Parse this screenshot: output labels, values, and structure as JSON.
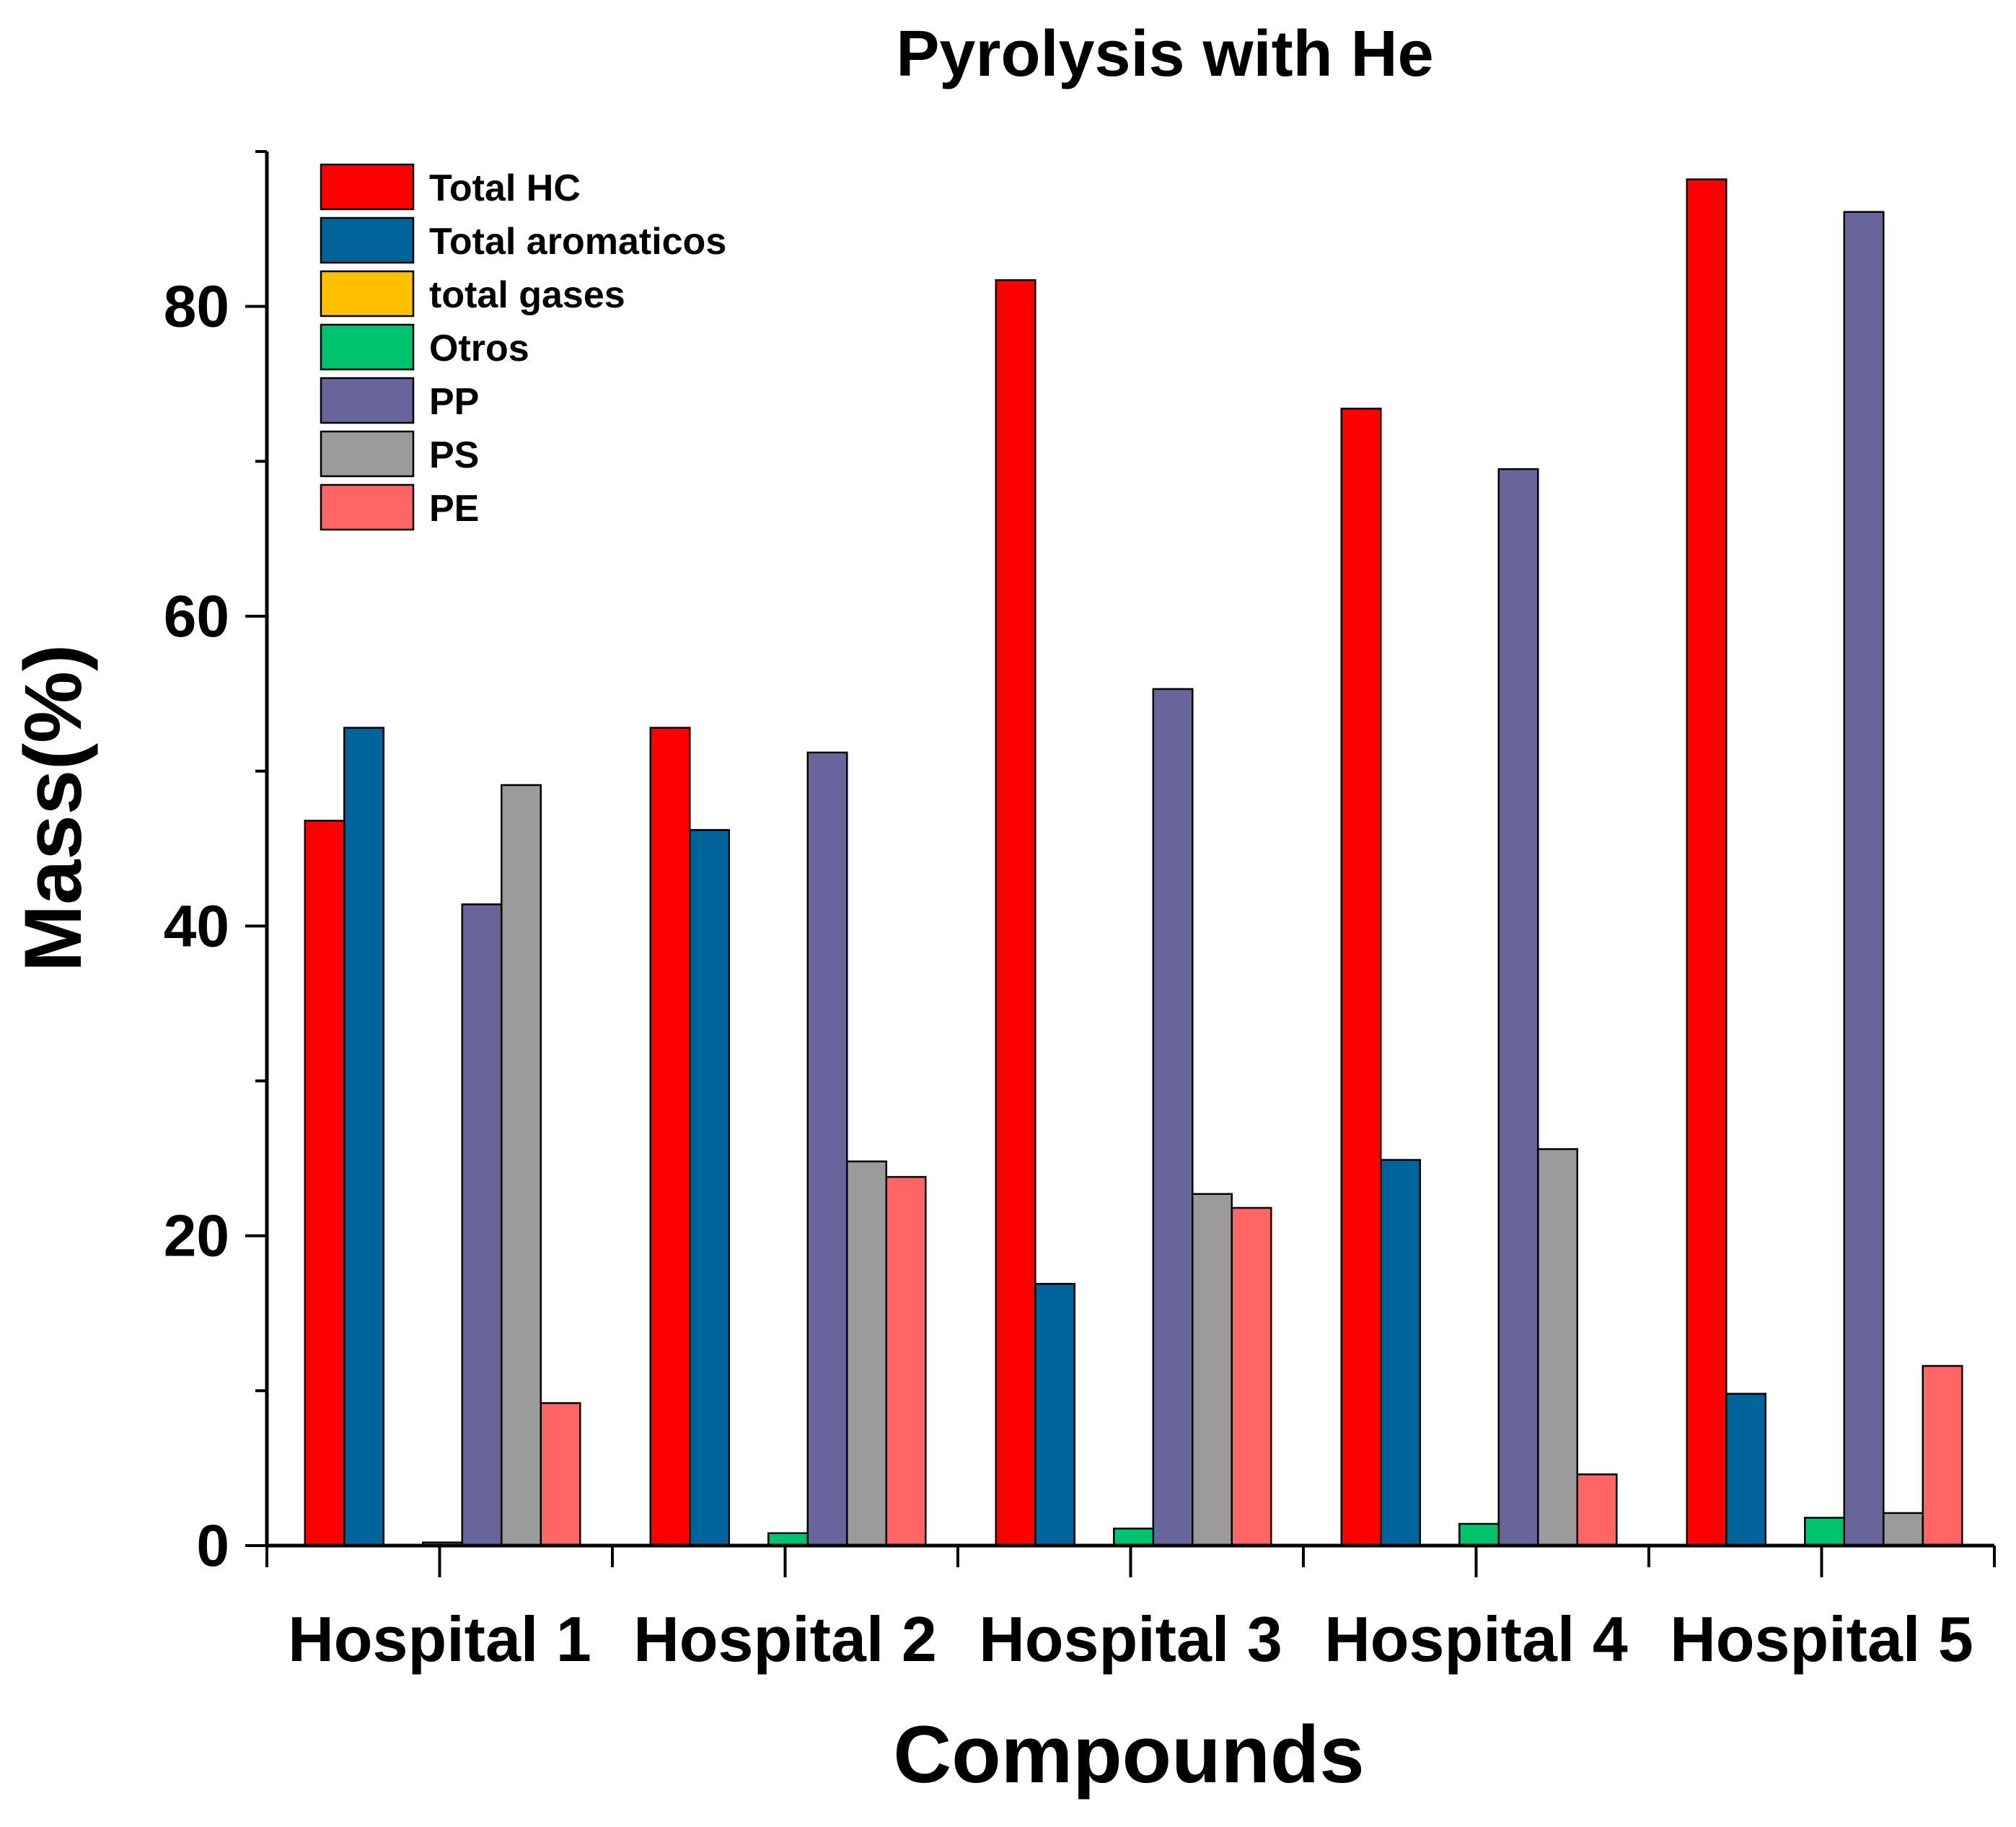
{
  "chart_data": {
    "type": "bar",
    "title": "Pyrolysis with He",
    "xlabel": "Compounds",
    "ylabel": "Mass(%)",
    "ylim": [
      0,
      90
    ],
    "yticks": [
      0,
      20,
      40,
      60,
      80
    ],
    "ytick_labels": [
      "0",
      "20",
      "40",
      "60",
      "80"
    ],
    "grid": false,
    "legend_position": "top-left",
    "categories": [
      "Hospital 1",
      "Hospital 2",
      "Hospital 3",
      "Hospital 4",
      "Hospital 5"
    ],
    "series": [
      {
        "name": "Total HC",
        "color": "#ff0000",
        "values": [
          46.8,
          52.8,
          81.7,
          73.4,
          88.2
        ]
      },
      {
        "name": "Total aromaticos",
        "color": "#00639a",
        "values": [
          52.8,
          46.2,
          16.9,
          24.9,
          9.8
        ]
      },
      {
        "name": "total gases",
        "color": "#ffc000",
        "values": [
          0,
          0,
          0,
          0,
          0
        ]
      },
      {
        "name": "Otros",
        "color": "#00c36e",
        "values": [
          0.2,
          0.8,
          1.1,
          1.4,
          1.8
        ]
      },
      {
        "name": "PP",
        "color": "#67659b",
        "values": [
          41.4,
          51.2,
          55.3,
          69.5,
          86.1
        ]
      },
      {
        "name": "PS",
        "color": "#9b9b9b",
        "values": [
          49.1,
          24.8,
          22.7,
          25.6,
          2.1
        ]
      },
      {
        "name": "PE",
        "color": "#ff6565",
        "values": [
          9.2,
          23.8,
          21.8,
          4.6,
          11.6
        ]
      }
    ]
  }
}
